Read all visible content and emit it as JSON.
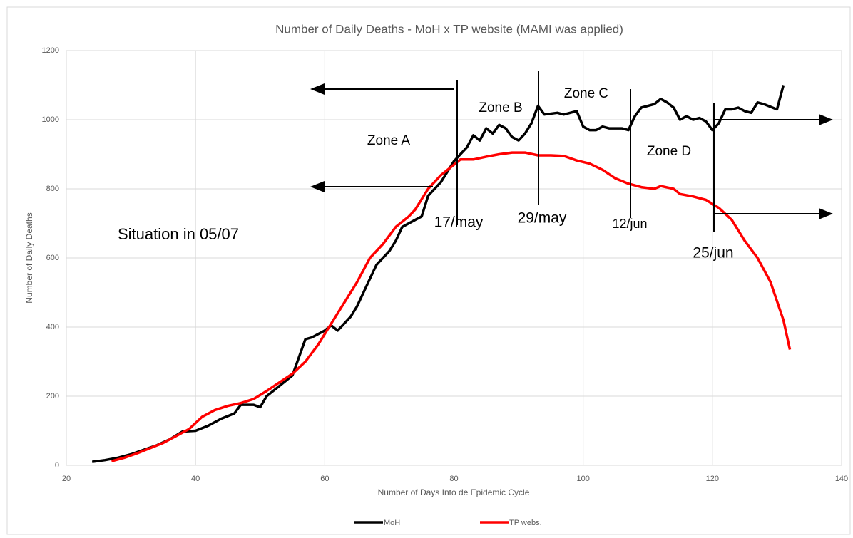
{
  "chart_data": {
    "type": "line",
    "title": "Number of Daily Deaths - MoH x TP website (MAMI was applied)",
    "xlabel": "Number of Days Into de Epidemic Cycle",
    "ylabel": "Number of Daily Deaths",
    "xlim": [
      20,
      140
    ],
    "xticks": [
      20,
      40,
      60,
      80,
      100,
      120,
      140
    ],
    "ylim": [
      0,
      1200
    ],
    "yticks": [
      0,
      200,
      400,
      600,
      800,
      1000,
      1200
    ],
    "grid": true,
    "legend": "bottom",
    "series": [
      {
        "name": "MoH",
        "color": "#000000",
        "x": [
          24,
          26,
          28,
          30,
          32,
          34,
          36,
          38,
          40,
          42,
          44,
          46,
          47,
          49,
          50,
          51,
          53,
          55,
          57,
          58,
          60,
          61,
          62,
          64,
          65,
          67,
          68,
          70,
          71,
          72,
          74,
          75,
          76,
          78,
          80,
          82,
          83,
          84,
          85,
          86,
          87,
          88,
          89,
          90,
          91,
          92,
          93,
          94,
          96,
          97,
          99,
          100,
          101,
          102,
          103,
          104,
          106,
          107,
          108,
          109,
          111,
          112,
          113,
          114,
          115,
          116,
          117,
          118,
          119,
          120,
          121,
          122,
          123,
          124,
          125,
          126,
          127,
          128,
          130,
          131
        ],
        "values": [
          10,
          15,
          22,
          32,
          45,
          58,
          75,
          98,
          100,
          115,
          135,
          150,
          175,
          175,
          168,
          200,
          230,
          260,
          365,
          370,
          390,
          405,
          390,
          430,
          460,
          540,
          580,
          620,
          650,
          690,
          710,
          720,
          780,
          820,
          880,
          920,
          955,
          940,
          975,
          960,
          985,
          975,
          950,
          940,
          960,
          990,
          1040,
          1015,
          1020,
          1015,
          1025,
          980,
          970,
          970,
          980,
          975,
          975,
          970,
          1010,
          1035,
          1045,
          1060,
          1050,
          1035,
          1000,
          1010,
          1000,
          1005,
          995,
          970,
          990,
          1030,
          1030,
          1035,
          1025,
          1020,
          1050,
          1045,
          1030,
          1100
        ]
      },
      {
        "name": "TP webs.",
        "color": "#ff0000",
        "x": [
          27,
          29,
          31,
          33,
          35,
          37,
          39,
          41,
          43,
          45,
          47,
          49,
          51,
          53,
          55,
          57,
          59,
          61,
          63,
          65,
          67,
          69,
          71,
          73,
          74,
          75,
          76,
          78,
          80,
          81,
          83,
          85,
          87,
          89,
          91,
          93,
          95,
          97,
          99,
          101,
          103,
          105,
          107,
          109,
          111,
          112,
          114,
          115,
          117,
          119,
          121,
          123,
          125,
          127,
          129,
          131,
          132
        ],
        "values": [
          12,
          22,
          35,
          50,
          65,
          85,
          105,
          140,
          160,
          172,
          180,
          192,
          215,
          240,
          265,
          300,
          350,
          410,
          470,
          530,
          600,
          640,
          690,
          720,
          740,
          770,
          800,
          840,
          870,
          885,
          885,
          893,
          900,
          905,
          905,
          897,
          897,
          895,
          882,
          873,
          855,
          830,
          815,
          805,
          800,
          808,
          800,
          785,
          778,
          768,
          745,
          710,
          650,
          600,
          530,
          420,
          335
        ]
      }
    ],
    "annotations": [
      "Zone A",
      "Zone B",
      "Zone C",
      "Zone D",
      "Situation in 05/07",
      "17/may",
      "29/may",
      "12/jun",
      "25/jun"
    ]
  }
}
